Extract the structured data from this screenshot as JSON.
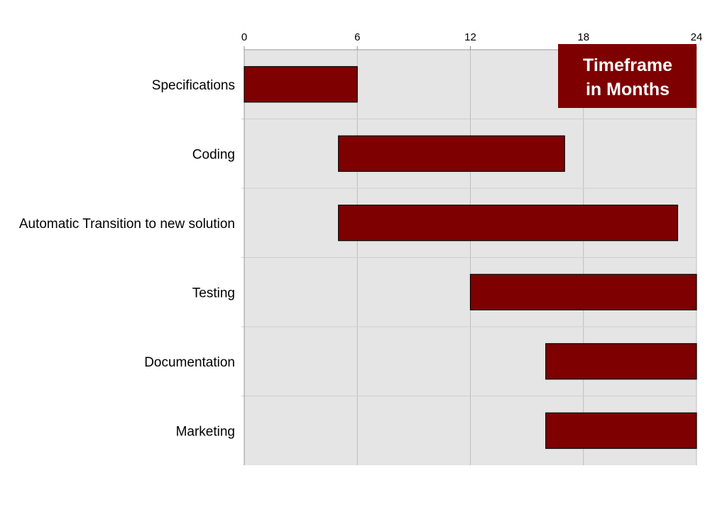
{
  "chart_data": {
    "type": "bar",
    "orientation": "horizontal-gantt",
    "title": "",
    "xlabel": "",
    "ylabel": "",
    "xlim": [
      0,
      24
    ],
    "xticks": [
      "0",
      "6",
      "12",
      "18",
      "24"
    ],
    "x_axis_position": "top",
    "grid": true,
    "legend": "none",
    "categories": [
      "Specifications",
      "Coding",
      "Automatic Transition to new solution",
      "Testing",
      "Documentation",
      "Marketing"
    ],
    "starts": [
      0,
      5,
      5,
      12,
      16,
      16
    ],
    "ends": [
      6,
      17,
      23,
      24,
      24,
      24
    ],
    "callout": [
      "Timeframe",
      "in Months"
    ],
    "colors": {
      "bar": "#7f0000",
      "plot_background": "#e5e5e5",
      "grid": "#bdbdbd",
      "callout": "#7f0000"
    }
  }
}
